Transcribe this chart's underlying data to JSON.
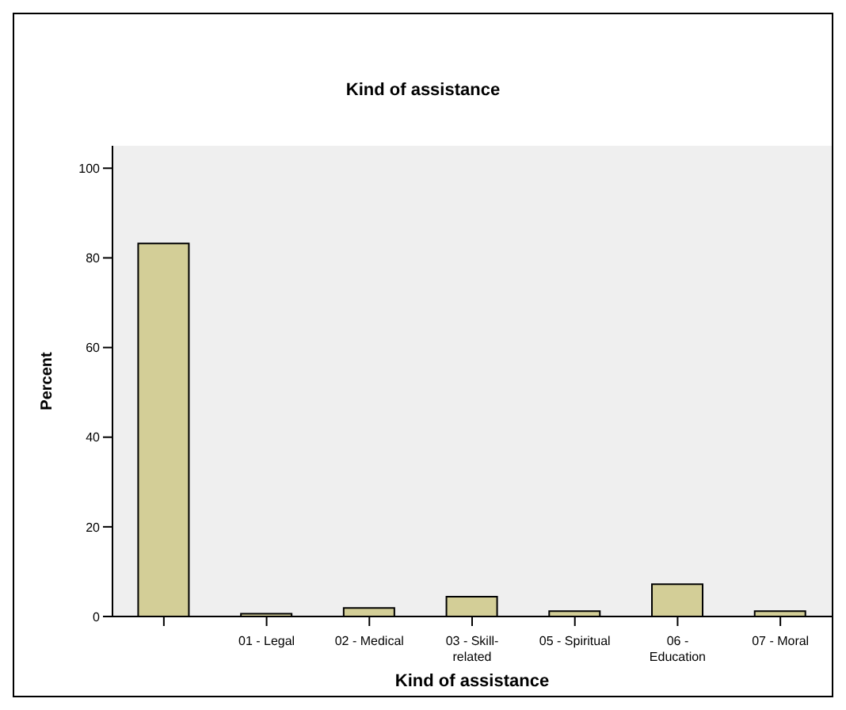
{
  "chart_data": {
    "type": "bar",
    "title": "Kind of assistance",
    "xlabel": "Kind of assistance",
    "ylabel": "Percent",
    "categories": [
      null,
      "01 - Legal",
      "02 - Medical",
      "03 - Skill-\nrelated",
      "05 - Spiritual",
      "06 -\nEducation",
      "07 - Moral"
    ],
    "values": [
      83.2,
      0.6,
      1.9,
      4.4,
      1.2,
      7.2,
      1.2
    ],
    "color": "#d3ce97",
    "ylim": [
      0,
      105
    ],
    "yticks": [
      0,
      20,
      40,
      60,
      80,
      100
    ],
    "grid": false,
    "legend": false
  }
}
